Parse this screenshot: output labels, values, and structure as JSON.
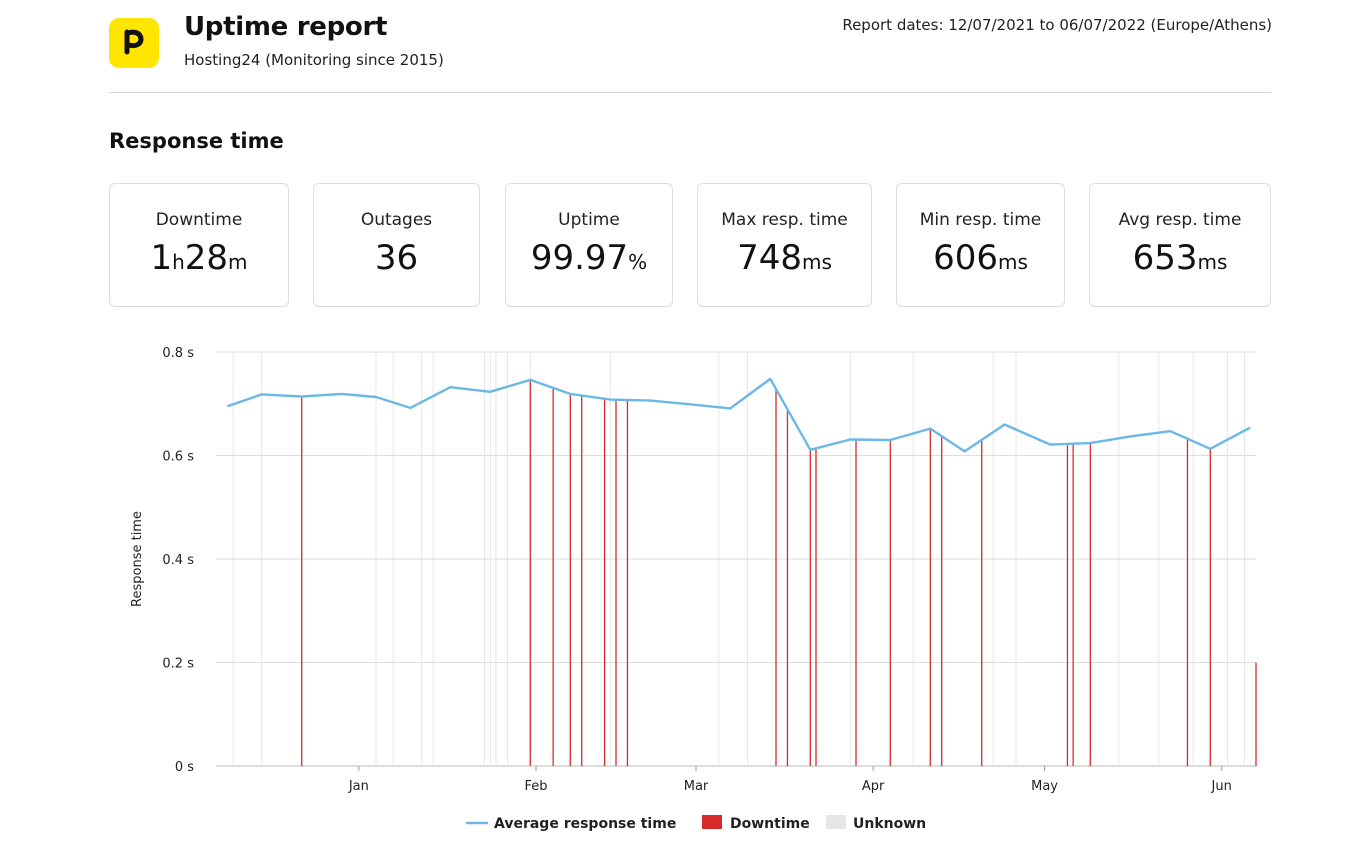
{
  "header": {
    "title": "Uptime report",
    "subtitle": "Hosting24 (Monitoring since 2015)",
    "report_dates": "Report dates: 12/07/2021 to 06/07/2022 (Europe/Athens)",
    "logo_icon": "pingdom-logo-icon"
  },
  "section_title": "Response time",
  "stats": [
    {
      "label": "Downtime",
      "parts": [
        {
          "t": "1",
          "c": "big"
        },
        {
          "t": "h",
          "c": "unit"
        },
        {
          "t": "28",
          "c": "big"
        },
        {
          "t": "m",
          "c": "unit"
        }
      ]
    },
    {
      "label": "Outages",
      "parts": [
        {
          "t": "36",
          "c": "big"
        }
      ]
    },
    {
      "label": "Uptime",
      "parts": [
        {
          "t": "99.97",
          "c": "big"
        },
        {
          "t": "%",
          "c": "unit"
        }
      ]
    },
    {
      "label": "Max resp. time",
      "parts": [
        {
          "t": "748",
          "c": "big"
        },
        {
          "t": "ms",
          "c": "unit"
        }
      ]
    },
    {
      "label": "Min resp. time",
      "parts": [
        {
          "t": "606",
          "c": "big"
        },
        {
          "t": "ms",
          "c": "unit"
        }
      ]
    },
    {
      "label": "Avg resp. time",
      "parts": [
        {
          "t": "653",
          "c": "big"
        },
        {
          "t": "ms",
          "c": "unit"
        }
      ]
    }
  ],
  "colors": {
    "line": "#6bb8e6",
    "downtime": "#d92b2b",
    "unknown": "#e6e6e6",
    "grid": "#dddddd",
    "logo": "#ffe600"
  },
  "chart_data": {
    "type": "line",
    "ylabel": "Response time",
    "yticks": [
      "0 s",
      "0.2 s",
      "0.4 s",
      "0.6 s",
      "0.8 s"
    ],
    "ylim": [
      0,
      0.8
    ],
    "xlim": [
      "2021-12-07",
      "2022-06-07"
    ],
    "month_ticks": [
      {
        "label": "Jan",
        "date": "2022-01-01"
      },
      {
        "label": "Feb",
        "date": "2022-02-01"
      },
      {
        "label": "Mar",
        "date": "2022-03-01"
      },
      {
        "label": "Apr",
        "date": "2022-04-01"
      },
      {
        "label": "May",
        "date": "2022-05-01"
      },
      {
        "label": "Jun",
        "date": "2022-06-01"
      }
    ],
    "legend": [
      {
        "label": "Average response time",
        "kind": "line"
      },
      {
        "label": "Downtime",
        "kind": "box-downtime"
      },
      {
        "label": "Unknown",
        "kind": "box-unknown"
      }
    ],
    "series": [
      {
        "points": [
          [
            "2021-12-09",
            0.695
          ],
          [
            "2021-12-15",
            0.718
          ],
          [
            "2021-12-22",
            0.714
          ],
          [
            "2021-12-29",
            0.719
          ],
          [
            "2022-01-04",
            0.713
          ],
          [
            "2022-01-10",
            0.692
          ],
          [
            "2022-01-17",
            0.732
          ],
          [
            "2022-01-24",
            0.723
          ],
          [
            "2022-01-31",
            0.746
          ],
          [
            "2022-02-07",
            0.719
          ],
          [
            "2022-02-14",
            0.708
          ],
          [
            "2022-02-21",
            0.706
          ],
          [
            "2022-02-28",
            0.699
          ],
          [
            "2022-03-07",
            0.691
          ],
          [
            "2022-03-14",
            0.748
          ],
          [
            "2022-03-21",
            0.611
          ],
          [
            "2022-03-28",
            0.631
          ],
          [
            "2022-04-04",
            0.63
          ],
          [
            "2022-04-11",
            0.652
          ],
          [
            "2022-04-17",
            0.608
          ],
          [
            "2022-04-24",
            0.66
          ],
          [
            "2022-05-02",
            0.621
          ],
          [
            "2022-05-09",
            0.624
          ],
          [
            "2022-05-16",
            0.637
          ],
          [
            "2022-05-23",
            0.647
          ],
          [
            "2022-05-30",
            0.613
          ],
          [
            "2022-06-06",
            0.654
          ]
        ]
      }
    ],
    "downtime_dates": [
      "2021-12-22",
      "2022-01-31",
      "2022-02-04",
      "2022-02-07",
      "2022-02-09",
      "2022-02-13",
      "2022-02-15",
      "2022-02-17",
      "2022-03-15",
      "2022-03-17",
      "2022-03-21",
      "2022-03-22",
      "2022-03-29",
      "2022-04-04",
      "2022-04-11",
      "2022-04-13",
      "2022-04-20",
      "2022-05-05",
      "2022-05-06",
      "2022-05-09",
      "2022-05-26",
      "2022-05-30",
      "2022-06-07"
    ],
    "unknown_dates": [
      "2021-12-10",
      "2021-12-15",
      "2022-01-04",
      "2022-01-07",
      "2022-01-12",
      "2022-01-14",
      "2022-01-23",
      "2022-01-24",
      "2022-01-25",
      "2022-01-27",
      "2022-01-31",
      "2022-02-14",
      "2022-03-05",
      "2022-03-10",
      "2022-03-28",
      "2022-04-08",
      "2022-04-22",
      "2022-04-26",
      "2022-05-14",
      "2022-05-21",
      "2022-05-27",
      "2022-06-02",
      "2022-06-05"
    ]
  }
}
